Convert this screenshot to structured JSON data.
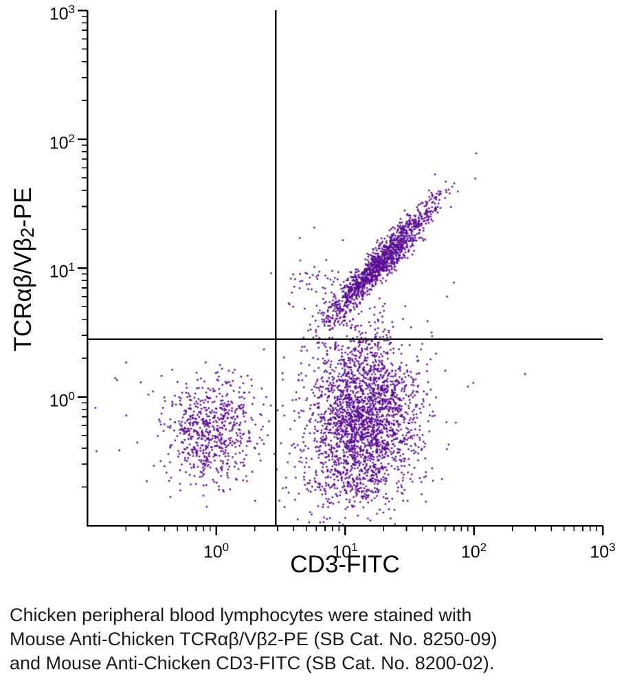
{
  "chart_data": {
    "type": "scatter",
    "title": "",
    "xlabel": "CD3-FITC",
    "ylabel": "TCRαβ/Vβ2-PE",
    "ylabel_parts": {
      "pre": "TCRαβ/Vβ",
      "sub": "2",
      "post": "-PE"
    },
    "x_scale": "log",
    "y_scale": "log",
    "xlim": [
      0.1,
      1000
    ],
    "ylim": [
      0.1,
      1000
    ],
    "x_tick_exponents": [
      0,
      1,
      2,
      3
    ],
    "y_tick_exponents": [
      0,
      1,
      2,
      3
    ],
    "grid": false,
    "legend": "none",
    "point_color": "#5a0f96",
    "axis_color": "#000000",
    "gates": {
      "x": 2.9,
      "y": 2.8
    },
    "seed": 1337,
    "clusters": [
      {
        "name": "cd3neg-tcrneg-lymphocytes",
        "n": 620,
        "cx": -0.04,
        "cy": -0.28,
        "sx": 0.17,
        "sy": 0.2,
        "rho": 0.15
      },
      {
        "name": "cd3pos-tcrneg-main",
        "n": 2100,
        "cx": 1.15,
        "cy": -0.2,
        "sx": 0.22,
        "sy": 0.28,
        "rho": 0.2
      },
      {
        "name": "cd3pos-tcrneg-bottom-tail",
        "n": 130,
        "cx": 1.12,
        "cy": -0.72,
        "sx": 0.26,
        "sy": 0.14,
        "rho": 0.0
      },
      {
        "name": "bridge-above-gate",
        "n": 240,
        "cx": 1.06,
        "cy": 0.34,
        "sx": 0.17,
        "sy": 0.17,
        "rho": 0.3
      },
      {
        "name": "cd3pos-tcrpos-diagonal",
        "n": 1350,
        "cx": 1.27,
        "cy": 1.04,
        "sx": 0.21,
        "sy": 0.23,
        "rho": 0.95
      },
      {
        "name": "diagonal-left-flank",
        "n": 55,
        "cx": 0.78,
        "cy": 0.86,
        "sx": 0.14,
        "sy": 0.17,
        "rho": 0.2
      },
      {
        "name": "sparse-noise-lower-left",
        "n": 90,
        "cx": 0.15,
        "cy": -0.25,
        "sx": 0.55,
        "sy": 0.35,
        "rho": 0.0,
        "clip": {
          "ly_max": 0.3
        }
      }
    ],
    "outliers": [
      [
        70,
        7.7
      ],
      [
        250,
        1.5
      ],
      [
        62,
        6.0
      ],
      [
        0.17,
        1.35
      ],
      [
        45,
        40
      ],
      [
        90,
        1.2
      ]
    ]
  },
  "caption": {
    "lines": [
      "Chicken peripheral blood lymphocytes were stained with",
      "Mouse Anti-Chicken TCRαβ/Vβ2-PE (SB Cat. No. 8250-09)",
      "and Mouse Anti-Chicken CD3-FITC (SB Cat. No. 8200-02)."
    ]
  }
}
